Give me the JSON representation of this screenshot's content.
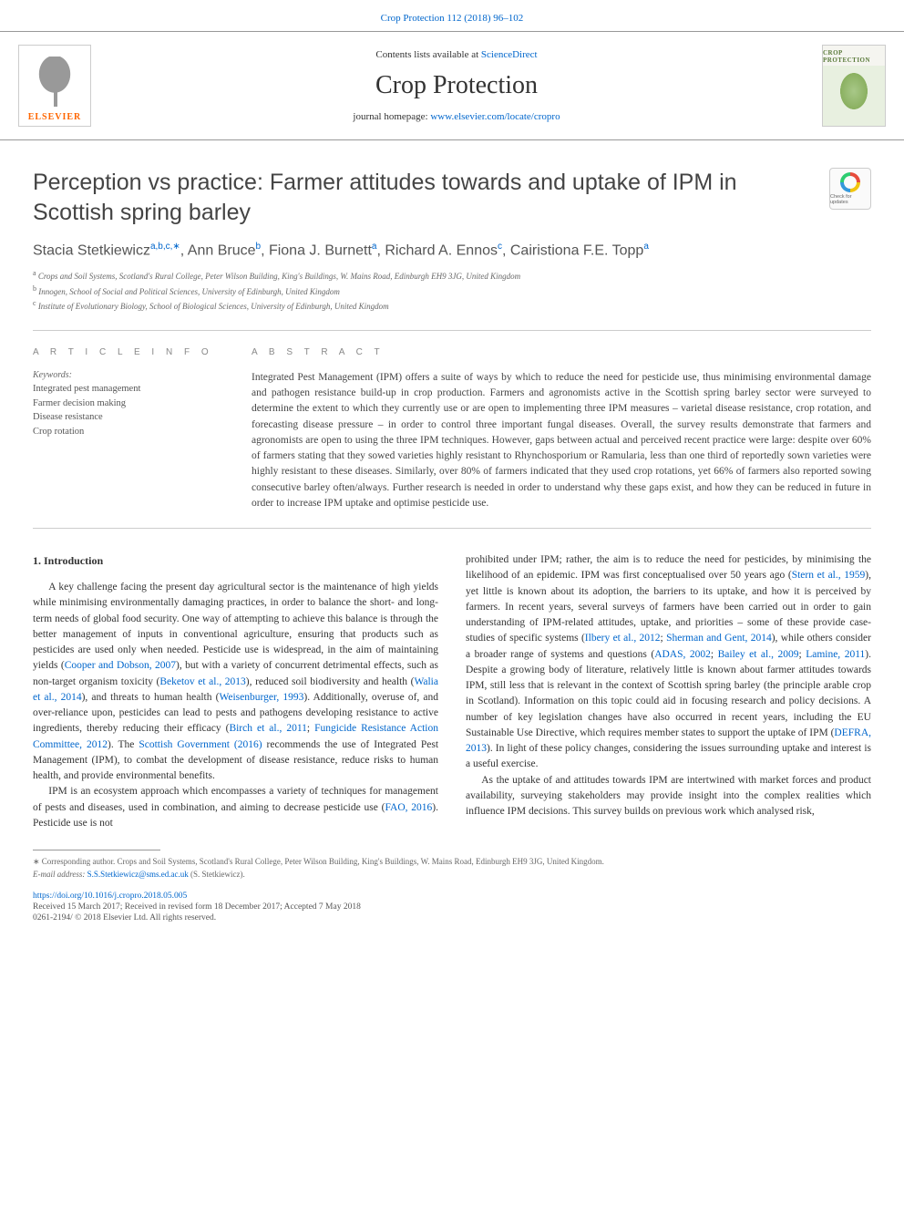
{
  "header": {
    "citation_link": "Crop Protection 112 (2018) 96–102",
    "contents_prefix": "Contents lists available at ",
    "contents_link": "ScienceDirect",
    "journal_title": "Crop Protection",
    "homepage_prefix": "journal homepage: ",
    "homepage_link": "www.elsevier.com/locate/cropro",
    "publisher_logo_text": "ELSEVIER",
    "cover_label": "CROP PROTECTION"
  },
  "article": {
    "title": "Perception vs practice: Farmer attitudes towards and uptake of IPM in Scottish spring barley",
    "crossmark_text": "Check for updates",
    "authors_html": "Stacia Stetkiewicz|a,b,c,∗|, Ann Bruce|b|, Fiona J. Burnett|a|, Richard A. Ennos|c|, Cairistiona F.E. Topp|a|",
    "affiliations": [
      {
        "sup": "a",
        "text": "Crops and Soil Systems, Scotland's Rural College, Peter Wilson Building, King's Buildings, W. Mains Road, Edinburgh EH9 3JG, United Kingdom"
      },
      {
        "sup": "b",
        "text": "Innogen, School of Social and Political Sciences, University of Edinburgh, United Kingdom"
      },
      {
        "sup": "c",
        "text": "Institute of Evolutionary Biology, School of Biological Sciences, University of Edinburgh, United Kingdom"
      }
    ]
  },
  "info": {
    "heading": "A R T I C L E  I N F O",
    "keywords_label": "Keywords:",
    "keywords": [
      "Integrated pest management",
      "Farmer decision making",
      "Disease resistance",
      "Crop rotation"
    ]
  },
  "abstract": {
    "heading": "A B S T R A C T",
    "text": "Integrated Pest Management (IPM) offers a suite of ways by which to reduce the need for pesticide use, thus minimising environmental damage and pathogen resistance build-up in crop production. Farmers and agronomists active in the Scottish spring barley sector were surveyed to determine the extent to which they currently use or are open to implementing three IPM measures – varietal disease resistance, crop rotation, and forecasting disease pressure – in order to control three important fungal diseases. Overall, the survey results demonstrate that farmers and agronomists are open to using the three IPM techniques. However, gaps between actual and perceived recent practice were large: despite over 60% of farmers stating that they sowed varieties highly resistant to Rhynchosporium or Ramularia, less than one third of reportedly sown varieties were highly resistant to these diseases. Similarly, over 80% of farmers indicated that they used crop rotations, yet 66% of farmers also reported sowing consecutive barley often/always. Further research is needed in order to understand why these gaps exist, and how they can be reduced in future in order to increase IPM uptake and optimise pesticide use."
  },
  "body": {
    "section_heading": "1. Introduction",
    "col1_p1_pre": "A key challenge facing the present day agricultural sector is the maintenance of high yields while minimising environmentally damaging practices, in order to balance the short- and long-term needs of global food security. One way of attempting to achieve this balance is through the better management of inputs in conventional agriculture, ensuring that products such as pesticides are used only when needed. Pesticide use is widespread, in the aim of maintaining yields (",
    "ref_cooper": "Cooper and Dobson, 2007",
    "col1_p1_mid1": "), but with a variety of concurrent detrimental effects, such as non-target organism toxicity (",
    "ref_beketov": "Beketov et al., 2013",
    "col1_p1_mid2": "), reduced soil biodiversity and health (",
    "ref_walia": "Walia et al., 2014",
    "col1_p1_mid3": "), and threats to human health (",
    "ref_weisenburger": "Weisenburger, 1993",
    "col1_p1_mid4": "). Additionally, overuse of, and over-reliance upon, pesticides can lead to pests and pathogens developing resistance to active ingredients, thereby reducing their efficacy (",
    "ref_birch": "Birch et al., 2011",
    "col1_p1_mid5": "; ",
    "ref_frac": "Fungicide Resistance Action Committee, 2012",
    "col1_p1_mid6": "). The ",
    "ref_scotgov": "Scottish Government (2016)",
    "col1_p1_post": " recommends the use of Integrated Pest Management (IPM), to combat the development of disease resistance, reduce risks to human health, and provide environmental benefits.",
    "col1_p2_pre": "IPM is an ecosystem approach which encompasses a variety of techniques for management of pests and diseases, used in combination, and aiming to decrease pesticide use (",
    "ref_fao": "FAO, 2016",
    "col1_p2_post": "). Pesticide use is not",
    "col2_p1_pre": "prohibited under IPM; rather, the aim is to reduce the need for pesticides, by minimising the likelihood of an epidemic. IPM was first conceptualised over 50 years ago (",
    "ref_stern": "Stern et al., 1959",
    "col2_p1_mid1": "), yet little is known about its adoption, the barriers to its uptake, and how it is perceived by farmers. In recent years, several surveys of farmers have been carried out in order to gain understanding of IPM-related attitudes, uptake, and priorities – some of these provide case-studies of specific systems (",
    "ref_ilbery": "Ilbery et al., 2012",
    "col2_p1_mid2": "; ",
    "ref_sherman": "Sherman and Gent, 2014",
    "col2_p1_mid3": "), while others consider a broader range of systems and questions (",
    "ref_adas": "ADAS, 2002",
    "col2_p1_mid4": "; ",
    "ref_bailey": "Bailey et al., 2009",
    "col2_p1_mid5": "; ",
    "ref_lamine": "Lamine, 2011",
    "col2_p1_mid6": "). Despite a growing body of literature, relatively little is known about farmer attitudes towards IPM, still less that is relevant in the context of Scottish spring barley (the principle arable crop in Scotland). Information on this topic could aid in focusing research and policy decisions. A number of key legislation changes have also occurred in recent years, including the EU Sustainable Use Directive, which requires member states to support the uptake of IPM (",
    "ref_defra": "DEFRA, 2013",
    "col2_p1_post": "). In light of these policy changes, considering the issues surrounding uptake and interest is a useful exercise.",
    "col2_p2": "As the uptake of and attitudes towards IPM are intertwined with market forces and product availability, surveying stakeholders may provide insight into the complex realities which influence IPM decisions. This survey builds on previous work which analysed risk,"
  },
  "footer": {
    "corresponding_prefix": "∗ Corresponding author. Crops and Soil Systems, Scotland's Rural College, Peter Wilson Building, King's Buildings, W. Mains Road, Edinburgh EH9 3JG, United Kingdom.",
    "email_label": "E-mail address: ",
    "email": "S.S.Stetkiewicz@sms.ed.ac.uk",
    "email_suffix": " (S. Stetkiewicz).",
    "doi": "https://doi.org/10.1016/j.cropro.2018.05.005",
    "dates": "Received 15 March 2017; Received in revised form 18 December 2017; Accepted 7 May 2018",
    "copyright": "0261-2194/ © 2018 Elsevier Ltd. All rights reserved."
  },
  "colors": {
    "link": "#0066cc",
    "text": "#333333",
    "muted": "#666666",
    "elsevier_orange": "#ff6600"
  }
}
